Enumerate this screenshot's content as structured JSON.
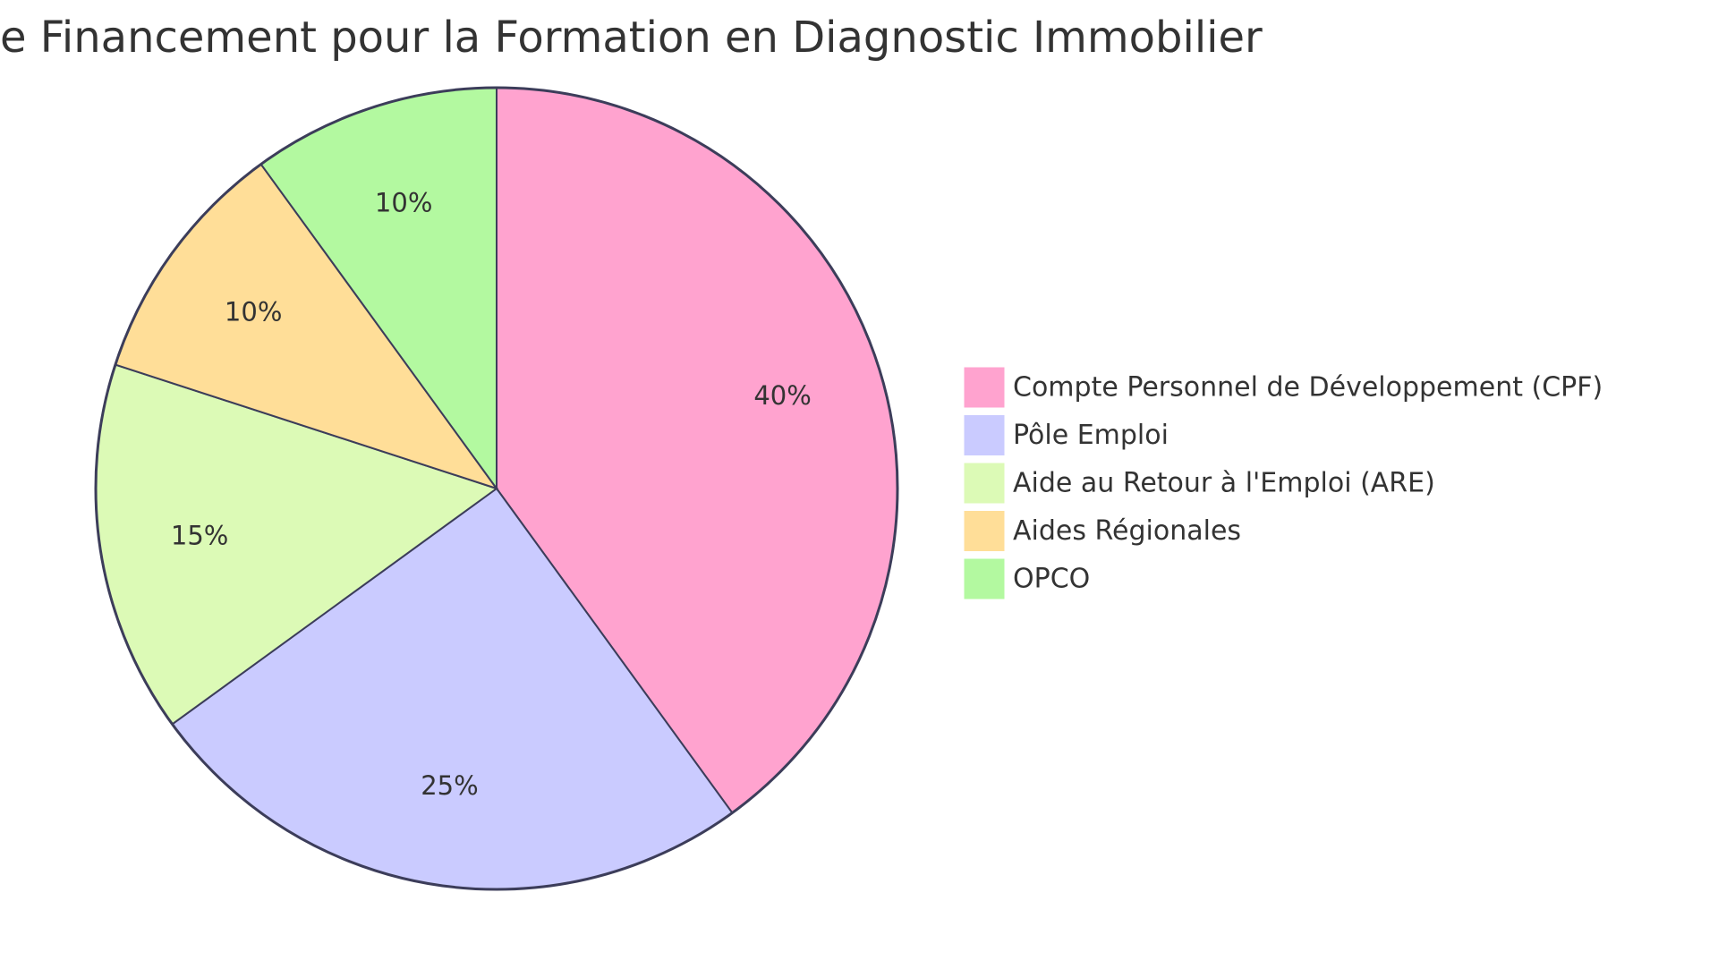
{
  "chart_data": {
    "type": "pie",
    "title": "Sources de Financement pour la Formation en Diagnostic Immobilier",
    "title_visible_text": "e Financement pour la Formation en Diagnostic Immobilier",
    "start_angle": "top",
    "direction": "clockwise",
    "legend_position": "right",
    "slices": [
      {
        "name": "Compte Personnel de Développement (CPF)",
        "value": 40,
        "label": "40%",
        "color": "#ffa3cf"
      },
      {
        "name": "Pôle Emploi",
        "value": 25,
        "label": "25%",
        "color": "#cacbff"
      },
      {
        "name": "Aide au Retour à l'Emploi (ARE)",
        "value": 15,
        "label": "15%",
        "color": "#dcfab6"
      },
      {
        "name": "Aides Régionales",
        "value": 10,
        "label": "10%",
        "color": "#ffde98"
      },
      {
        "name": "OPCO",
        "value": 10,
        "label": "10%",
        "color": "#b3f9a0"
      }
    ],
    "stroke_color": "#3c3d5a"
  }
}
